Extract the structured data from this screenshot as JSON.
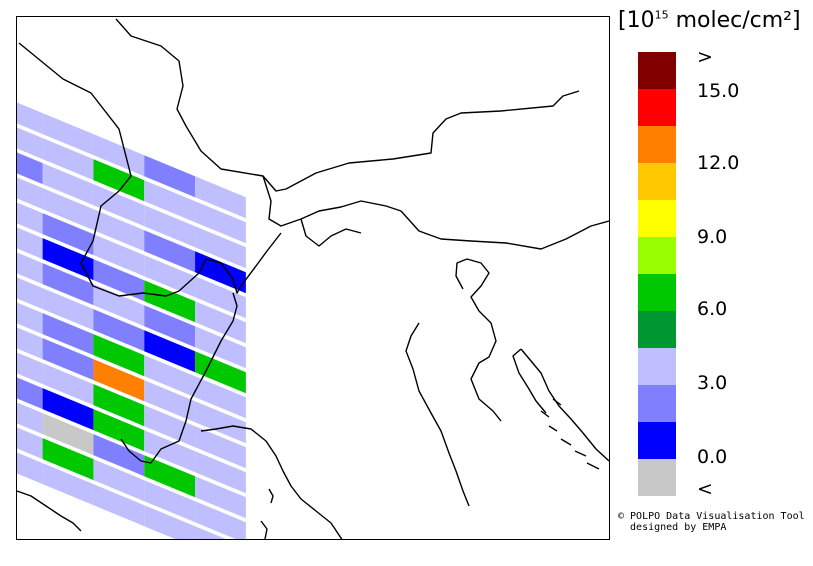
{
  "legend": {
    "unit_prefix": "[10",
    "unit_exp": "15",
    "unit_suffix": " molec/cm²]",
    "colors": [
      "#800000",
      "#ff0000",
      "#ff8000",
      "#ffc800",
      "#ffff00",
      "#99ff00",
      "#00c800",
      "#009632",
      "#bfbfff",
      "#8080ff",
      "#0000ff",
      "#c8c8c8"
    ],
    "ticks": [
      ">",
      "15.0",
      "12.0",
      "9.0",
      "6.0",
      "3.0",
      "0.0",
      "<"
    ]
  },
  "credit": {
    "line1": "© POLPO Data Visualisation Tool",
    "line2": "  designed by EMPA"
  },
  "swath": {
    "direction_deg": 22.5,
    "pixel_length": 55,
    "row_pitch": 25,
    "row_height": 21,
    "rows": [
      [
        "A",
        "L",
        "L",
        "L",
        "A",
        "L"
      ],
      [
        "L",
        "L",
        "L",
        "G",
        "L",
        "L"
      ],
      [
        "L",
        "A",
        "L",
        "L",
        "L",
        "L"
      ],
      [
        "A",
        "L",
        "L",
        "L",
        "A",
        "B"
      ],
      [
        "L",
        "L",
        "A",
        "L",
        "L",
        "L"
      ],
      [
        "L",
        "L",
        "B",
        "A",
        "G",
        "L"
      ],
      [
        "B",
        "L",
        "A",
        "L",
        "A",
        "L"
      ],
      [
        "B",
        "L",
        "L",
        "A",
        "B",
        "G"
      ],
      [
        "A",
        "L",
        "A",
        "G",
        "L",
        "L"
      ],
      [
        "L",
        "L",
        "A",
        "O",
        "L",
        "L"
      ],
      [
        "A",
        "L",
        "L",
        "G",
        "L",
        "L"
      ],
      [
        "L",
        "A",
        "B",
        "G",
        "L",
        "L"
      ],
      [
        "A",
        "L",
        "X",
        "A",
        "G",
        "L"
      ],
      [
        "X",
        "L",
        "G",
        "L",
        "L",
        "L"
      ],
      [
        "L",
        "L",
        "L",
        "L",
        "L",
        "L"
      ]
    ],
    "classes": {
      "B": "#0000ff",
      "A": "#8080ff",
      "L": "#bfbfff",
      "D": "#009632",
      "G": "#00c800",
      "O": "#ff8000",
      "X": "#c8c8c8"
    }
  }
}
